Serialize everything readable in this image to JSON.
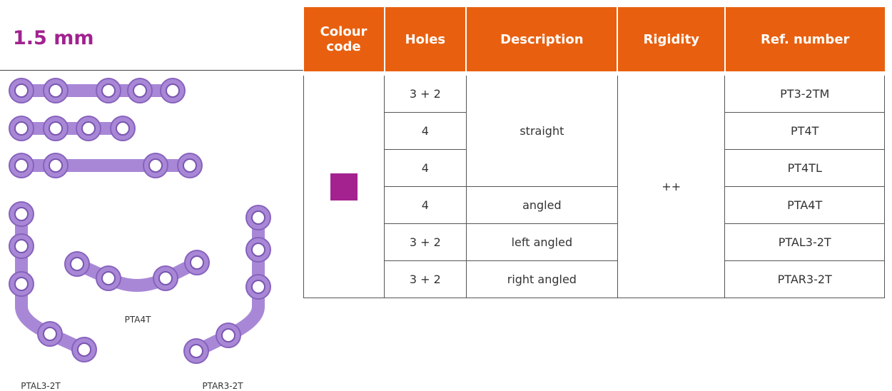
{
  "header": {
    "title": "1.5 mm"
  },
  "images": [
    {
      "label": "PTA4T"
    },
    {
      "label": "PTAL3-2T"
    },
    {
      "label": "PTAR3-2T"
    }
  ],
  "table": {
    "columns": [
      "Colour code",
      "Holes",
      "Description",
      "Rigidity",
      "Ref. number"
    ],
    "colour_code": "#a3228f",
    "holes": [
      "3 + 2",
      "4",
      "4",
      "4",
      "3 + 2",
      "3 + 2"
    ],
    "descriptions": [
      "straight",
      "angled",
      "left angled",
      "right angled"
    ],
    "rigidity": "++",
    "ref_numbers": [
      "PT3-2TM",
      "PT4T",
      "PT4TL",
      "PTA4T",
      "PTAL3-2T",
      "PTAR3-2T"
    ]
  }
}
